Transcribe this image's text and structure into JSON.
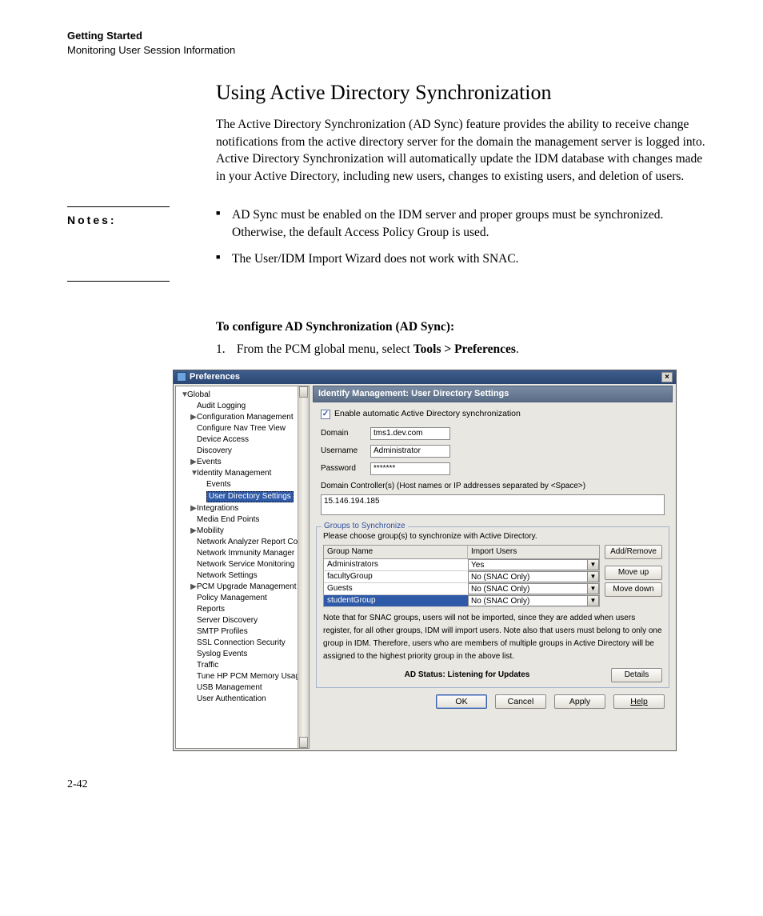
{
  "header": {
    "chapter": "Getting Started",
    "section": "Monitoring User Session Information"
  },
  "title": "Using Active Directory Synchronization",
  "intro": "The Active Directory Synchronization (AD Sync) feature provides the ability to receive change notifications from the active directory server for the domain the management server is logged into. Active Directory Synchronization will automatically update the IDM database with changes made in your Active Directory, including new users, changes to existing users, and deletion of users.",
  "notes_label": "Notes:",
  "notes": [
    "AD Sync must be enabled on the IDM server and proper groups must be synchronized. Otherwise, the default Access Policy Group is used.",
    "The User/IDM Import Wizard does not work with SNAC."
  ],
  "configure_heading": "To configure AD Synchronization (AD Sync):",
  "step1_prefix": "From the PCM global menu, select ",
  "step1_bold": "Tools > Preferences",
  "step1_suffix": ".",
  "window": {
    "title": "Preferences",
    "section_title": "Identify Management: User Directory Settings",
    "tree": [
      {
        "label": "Global",
        "depth": 0,
        "exp": "▼"
      },
      {
        "label": "Audit Logging",
        "depth": 1,
        "exp": ""
      },
      {
        "label": "Configuration Management",
        "depth": 1,
        "exp": "▶"
      },
      {
        "label": "Configure Nav Tree View",
        "depth": 1,
        "exp": ""
      },
      {
        "label": "Device Access",
        "depth": 1,
        "exp": ""
      },
      {
        "label": "Discovery",
        "depth": 1,
        "exp": ""
      },
      {
        "label": "Events",
        "depth": 1,
        "exp": "▶"
      },
      {
        "label": "Identity Management",
        "depth": 1,
        "exp": "▼"
      },
      {
        "label": "Events",
        "depth": 2,
        "exp": ""
      },
      {
        "label": "User Directory Settings",
        "depth": 2,
        "exp": "",
        "selected": true
      },
      {
        "label": "Integrations",
        "depth": 1,
        "exp": "▶"
      },
      {
        "label": "Media End Points",
        "depth": 1,
        "exp": ""
      },
      {
        "label": "Mobility",
        "depth": 1,
        "exp": "▶"
      },
      {
        "label": "Network Analyzer Report Config",
        "depth": 1,
        "exp": ""
      },
      {
        "label": "Network Immunity Manager",
        "depth": 1,
        "exp": ""
      },
      {
        "label": "Network Service Monitoring",
        "depth": 1,
        "exp": ""
      },
      {
        "label": "Network Settings",
        "depth": 1,
        "exp": ""
      },
      {
        "label": "PCM Upgrade Management",
        "depth": 1,
        "exp": "▶"
      },
      {
        "label": "Policy Management",
        "depth": 1,
        "exp": ""
      },
      {
        "label": "Reports",
        "depth": 1,
        "exp": ""
      },
      {
        "label": "Server Discovery",
        "depth": 1,
        "exp": ""
      },
      {
        "label": "SMTP Profiles",
        "depth": 1,
        "exp": ""
      },
      {
        "label": "SSL Connection Security",
        "depth": 1,
        "exp": ""
      },
      {
        "label": "Syslog Events",
        "depth": 1,
        "exp": ""
      },
      {
        "label": "Traffic",
        "depth": 1,
        "exp": ""
      },
      {
        "label": "Tune HP PCM Memory Usage",
        "depth": 1,
        "exp": ""
      },
      {
        "label": "USB Management",
        "depth": 1,
        "exp": ""
      },
      {
        "label": "User Authentication",
        "depth": 1,
        "exp": ""
      }
    ],
    "checkbox_label": "Enable automatic Active Directory synchronization",
    "checkbox_checked": true,
    "labels": {
      "domain": "Domain",
      "username": "Username",
      "password": "Password"
    },
    "fields": {
      "domain": "tms1.dev.com",
      "username": "Administrator",
      "password": "*******"
    },
    "dc_label": "Domain Controller(s) (Host names or IP addresses separated by <Space>)",
    "dc_value": "15.146.194.185",
    "groups_legend": "Groups to Synchronize",
    "groups_instr": "Please choose group(s) to synchronize with Active Directory.",
    "table": {
      "col1": "Group Name",
      "col2": "Import Users",
      "rows": [
        {
          "name": "Administrators",
          "import": "Yes",
          "selected": false
        },
        {
          "name": "facultyGroup",
          "import": "No (SNAC Only)",
          "selected": false
        },
        {
          "name": "Guests",
          "import": "No (SNAC Only)",
          "selected": false
        },
        {
          "name": "studentGroup",
          "import": "No (SNAC Only)",
          "selected": true
        }
      ]
    },
    "side_buttons": {
      "addremove": "Add/Remove",
      "moveup": "Move up",
      "movedown": "Move down"
    },
    "note_text": "Note that for SNAC groups, users will not be imported, since they are added when users register, for all other groups, IDM will import users. Note also that users must belong to only one group in IDM. Therefore, users who are members of multiple groups in Active Directory will be assigned to the highest priority group in the above list.",
    "ad_status": "AD Status: Listening for Updates",
    "details": "Details",
    "buttons": {
      "ok": "OK",
      "cancel": "Cancel",
      "apply": "Apply",
      "help": "Help"
    }
  },
  "page_number": "2-42"
}
